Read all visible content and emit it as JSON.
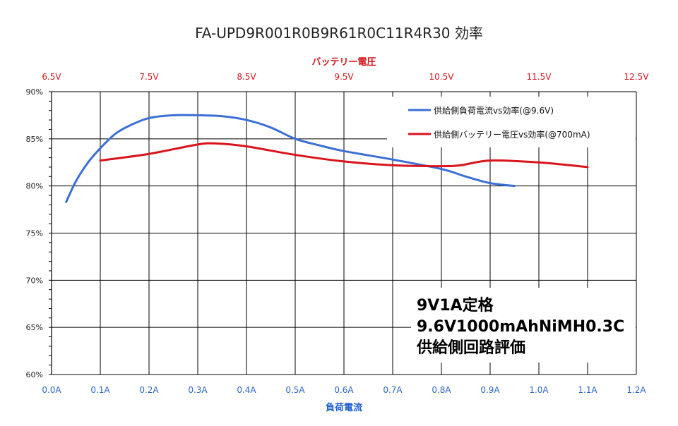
{
  "chart_data": {
    "type": "line",
    "title": "FA-UPD9R001R0B9R61R0C11R4R30 効率",
    "xlabel": "負荷電流",
    "x2label": "バッテリー電圧",
    "ylabel": "",
    "xlim": [
      0.0,
      1.2
    ],
    "x2lim": [
      6.5,
      12.5
    ],
    "ylim": [
      60,
      90
    ],
    "xticks": [
      "0.0A",
      "0.1A",
      "0.2A",
      "0.3A",
      "0.4A",
      "0.5A",
      "0.6A",
      "0.7A",
      "0.8A",
      "0.9A",
      "1.0A",
      "1.1A",
      "1.2A"
    ],
    "x2ticks": [
      "6.5V",
      "7.5V",
      "8.5V",
      "9.5V",
      "10.5V",
      "11.5V",
      "12.5V"
    ],
    "yticks": [
      "90%",
      "85%",
      "80%",
      "75%",
      "70%",
      "65%",
      "60%"
    ],
    "grid": true,
    "legend_position": "top-right",
    "series": [
      {
        "name": "供給側負荷電流vs効率(@9.6V)",
        "color": "#3c6fd6",
        "axis": "bottom",
        "x": [
          0.03,
          0.05,
          0.075,
          0.1,
          0.13,
          0.16,
          0.2,
          0.25,
          0.3,
          0.35,
          0.4,
          0.45,
          0.5,
          0.55,
          0.6,
          0.7,
          0.8,
          0.85,
          0.9,
          0.95
        ],
        "y": [
          78.3,
          80.5,
          82.5,
          84.0,
          85.5,
          86.4,
          87.2,
          87.5,
          87.5,
          87.4,
          87.0,
          86.2,
          85.0,
          84.3,
          83.7,
          82.8,
          81.8,
          81.0,
          80.3,
          80.0
        ]
      },
      {
        "name": "供給側バッテリー電圧vs効率(@700mA)",
        "color": "#d8141c",
        "axis": "top",
        "x": [
          7.0,
          7.5,
          8.0,
          8.2,
          8.5,
          9.0,
          9.5,
          10.0,
          10.5,
          10.7,
          11.0,
          11.5,
          12.0
        ],
        "y": [
          82.7,
          83.4,
          84.4,
          84.5,
          84.2,
          83.3,
          82.6,
          82.2,
          82.1,
          82.2,
          82.7,
          82.5,
          82.0
        ]
      }
    ],
    "annotation": [
      "9V1A定格",
      "9.6V1000mAhNiMH0.3C",
      "供給側回路評価"
    ]
  }
}
